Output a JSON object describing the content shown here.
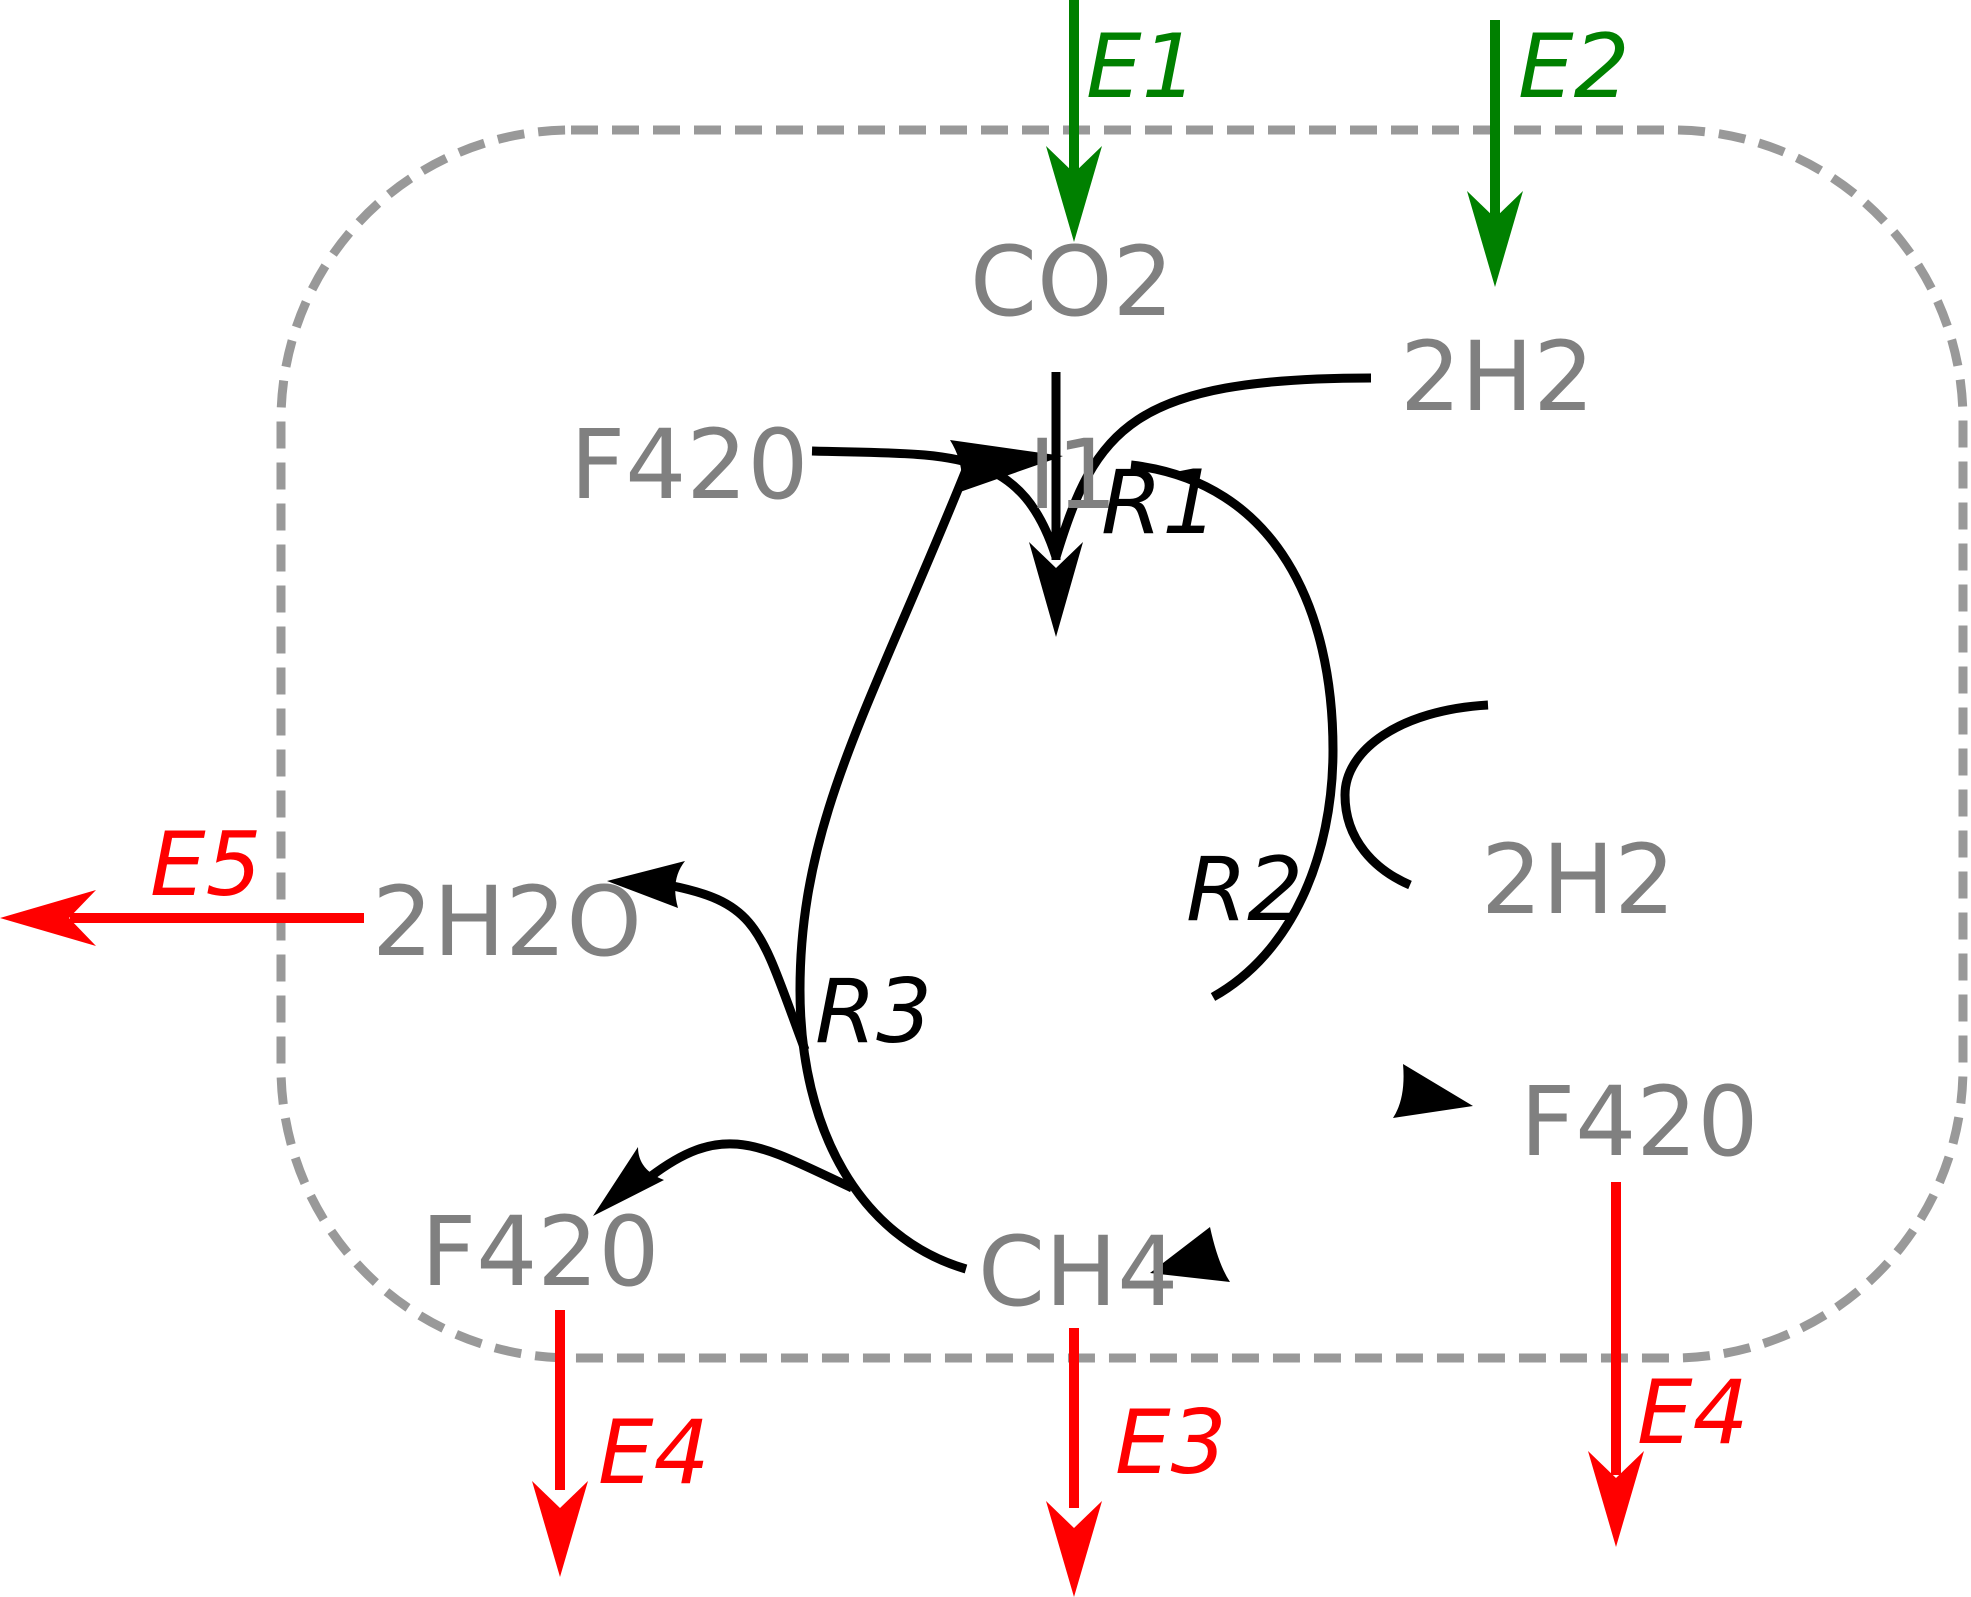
{
  "colors": {
    "boundary": "#999999",
    "species": "#808080",
    "reaction": "#000000",
    "uptake": "#008000",
    "secretion": "#ff0000"
  },
  "species": {
    "co2": "CO2",
    "h2_top": "2H2",
    "f420_top": "F420",
    "i1": "I1",
    "h2_right": "2H2",
    "f420_right": "F420",
    "h2o": "2H2O",
    "f420_left": "F420",
    "ch4": "CH4"
  },
  "reactions": {
    "r1": "R1",
    "r2": "R2",
    "r3": "R3"
  },
  "exchanges": {
    "e1": "E1",
    "e2": "E2",
    "e3": "E3",
    "e4_left": "E4",
    "e4_right": "E4",
    "e5": "E5"
  }
}
